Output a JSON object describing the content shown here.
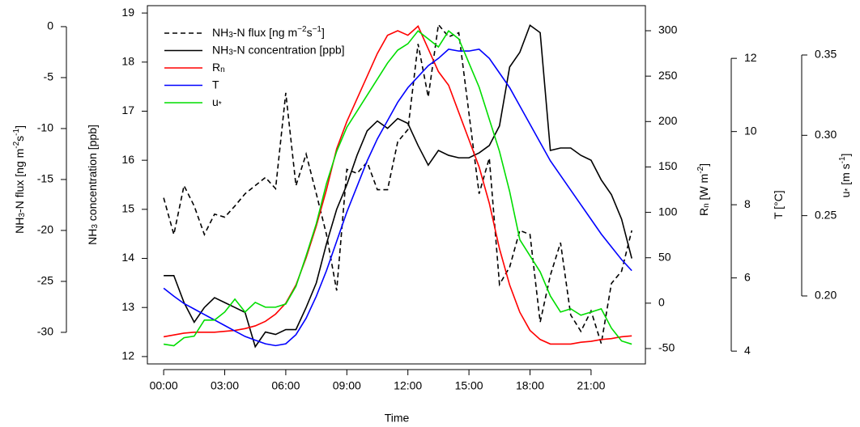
{
  "chart_data": {
    "type": "line",
    "x_label": "Time",
    "xlim": [
      -0.8,
      23.67
    ],
    "xticks": [
      {
        "value": 0,
        "label": "00:00"
      },
      {
        "value": 3,
        "label": "03:00"
      },
      {
        "value": 6,
        "label": "06:00"
      },
      {
        "value": 9,
        "label": "09:00"
      },
      {
        "value": 12,
        "label": "12:00"
      },
      {
        "value": 15,
        "label": "15:00"
      },
      {
        "value": 18,
        "label": "18:00"
      },
      {
        "value": 21,
        "label": "21:00"
      }
    ],
    "x": [
      0,
      0.5,
      1,
      1.5,
      2,
      2.5,
      3,
      3.5,
      4,
      4.5,
      5,
      5.5,
      6,
      6.5,
      7,
      7.5,
      8,
      8.5,
      9,
      9.5,
      10,
      10.5,
      11,
      11.5,
      12,
      12.5,
      13,
      13.5,
      14,
      14.5,
      15,
      15.5,
      16,
      16.5,
      17,
      17.5,
      18,
      18.5,
      19,
      19.5,
      20,
      20.5,
      21,
      21.5,
      22,
      22.5,
      23
    ],
    "axes": [
      {
        "label": [
          "NH",
          {
            "text": "3",
            "pos": "sub"
          },
          "-N flux [ng m",
          {
            "text": "-2",
            "pos": "sup"
          },
          "s",
          {
            "text": "-1",
            "pos": "sup"
          },
          "]"
        ],
        "lim": [
          -33.1,
          2.06
        ],
        "ticks": [
          0,
          -5,
          -10,
          -15,
          -20,
          -25,
          -30
        ]
      },
      {
        "label": [
          "NH",
          {
            "text": "3",
            "pos": "sub"
          },
          " concentration [ppb]"
        ],
        "lim": [
          11.85,
          19.15
        ],
        "ticks": [
          12,
          13,
          14,
          15,
          16,
          17,
          18,
          19
        ]
      },
      {
        "label": [
          "R",
          {
            "text": "n",
            "pos": "sub"
          },
          " [W m",
          {
            "text": "-2",
            "pos": "sup"
          },
          "]"
        ],
        "lim": [
          -66.9,
          327.6
        ],
        "ticks": [
          -50,
          0,
          50,
          100,
          150,
          200,
          250,
          300
        ]
      },
      {
        "label": [
          "T [°C]"
        ],
        "lim": [
          3.65,
          13.44
        ],
        "ticks": [
          4,
          6,
          8,
          10,
          12
        ]
      },
      {
        "label": [
          "u",
          {
            "text": "*",
            "pos": "sub"
          },
          " [m s",
          {
            "text": "-1",
            "pos": "sup"
          },
          "]"
        ],
        "lim": [
          0.1577,
          0.3807
        ],
        "ticks": [
          {
            "value": 0.2,
            "label": "0.20"
          },
          0.25,
          {
            "value": 0.3,
            "label": "0.30"
          },
          0.35
        ]
      }
    ],
    "series": [
      {
        "name": [
          "NH",
          {
            "text": "3",
            "pos": "sub"
          },
          "-N flux [ng m",
          {
            "text": "−2",
            "pos": "sup"
          },
          "s",
          {
            "text": "−1",
            "pos": "sup"
          },
          "]"
        ],
        "color": "#000000",
        "linestyle": "dashed",
        "axis": 0,
        "values": [
          -16.8,
          -20.4,
          -15.6,
          -17.6,
          -20.4,
          -18.4,
          -18.7,
          -17.6,
          -16.4,
          -15.6,
          -14.8,
          -15.9,
          -6.5,
          -15.6,
          -12.5,
          -16.4,
          -20.4,
          -25.9,
          -14,
          -14.4,
          -13.3,
          -16,
          -16,
          -11.3,
          -10.1,
          -1.7,
          -6.9,
          0.2,
          -1,
          -0.6,
          -8.5,
          -16.4,
          -12.9,
          -25.3,
          -23.6,
          -20,
          -20.4,
          -29,
          -24.4,
          -21.2,
          -28.3,
          -29.9,
          -27.9,
          -31.1,
          -25.2,
          -24,
          -20
        ]
      },
      {
        "name": [
          "NH",
          {
            "text": "3",
            "pos": "sub"
          },
          "-N concentration [ppb]"
        ],
        "color": "#000000",
        "linestyle": "solid",
        "axis": 1,
        "values": [
          13.65,
          13.65,
          13.1,
          12.7,
          13.0,
          13.2,
          13.1,
          13.0,
          12.9,
          12.2,
          12.5,
          12.45,
          12.55,
          12.55,
          13.0,
          13.5,
          14.3,
          15.0,
          15.5,
          16.1,
          16.6,
          16.8,
          16.65,
          16.85,
          16.75,
          16.3,
          15.9,
          16.2,
          16.1,
          16.05,
          16.05,
          16.15,
          16.3,
          16.7,
          17.9,
          18.2,
          18.75,
          18.6,
          16.2,
          16.25,
          16.25,
          16.1,
          16.0,
          15.6,
          15.3,
          14.8,
          14.0
        ]
      },
      {
        "name": [
          "R",
          {
            "text": "n",
            "pos": "sub"
          }
        ],
        "color": "#ff0000",
        "linestyle": "solid",
        "axis": 2,
        "values": [
          -37,
          -35,
          -33,
          -32,
          -32,
          -32,
          -31,
          -30,
          -28,
          -25,
          -20,
          -12,
          0,
          20,
          50,
          85,
          125,
          170,
          200,
          225,
          250,
          275,
          295,
          300,
          295,
          305,
          280,
          255,
          240,
          210,
          180,
          150,
          110,
          60,
          20,
          -10,
          -30,
          -40,
          -45,
          -45,
          -45,
          -43,
          -42,
          -40,
          -39,
          -37,
          -36
        ]
      },
      {
        "name": [
          "T"
        ],
        "color": "#0000ff",
        "linestyle": "solid",
        "axis": 3,
        "values": [
          5.72,
          5.5,
          5.3,
          5.15,
          5.0,
          4.85,
          4.7,
          4.55,
          4.4,
          4.3,
          4.2,
          4.15,
          4.2,
          4.45,
          4.9,
          5.5,
          6.2,
          7.0,
          7.8,
          8.5,
          9.2,
          9.8,
          10.3,
          10.8,
          11.2,
          11.5,
          11.8,
          12.0,
          12.25,
          12.2,
          12.2,
          12.25,
          12.0,
          11.6,
          11.2,
          10.7,
          10.2,
          9.7,
          9.2,
          8.8,
          8.4,
          8.0,
          7.6,
          7.2,
          6.85,
          6.5,
          6.2
        ]
      },
      {
        "name": [
          "u",
          {
            "text": "*",
            "pos": "sub"
          }
        ],
        "color": "#00dd00",
        "linestyle": "solid",
        "axis": 4,
        "values": [
          0.17,
          0.169,
          0.174,
          0.175,
          0.185,
          0.185,
          0.19,
          0.198,
          0.19,
          0.196,
          0.193,
          0.193,
          0.195,
          0.206,
          0.225,
          0.245,
          0.27,
          0.29,
          0.305,
          0.315,
          0.325,
          0.335,
          0.345,
          0.353,
          0.357,
          0.365,
          0.36,
          0.355,
          0.365,
          0.36,
          0.345,
          0.33,
          0.31,
          0.29,
          0.265,
          0.235,
          0.225,
          0.215,
          0.2,
          0.19,
          0.192,
          0.188,
          0.19,
          0.192,
          0.18,
          0.172,
          0.17
        ]
      }
    ]
  }
}
